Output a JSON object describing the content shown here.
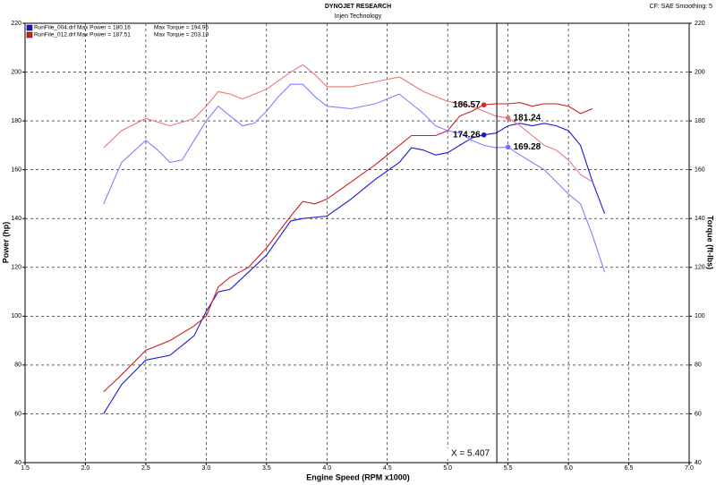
{
  "chart_data": {
    "type": "line",
    "title": "DYNOJET RESEARCH",
    "subtitle": "Injen Technology",
    "settings_text": "CF: SAE  Smoothing: 5",
    "xlabel": "Engine Speed (RPM x1000)",
    "ylabel": "Power (hp)",
    "y2label": "Torque (ft-lbs)",
    "legend": [
      {
        "text": "RunFile_004.drf Max Power = 180.16",
        "torque": "Max Torque = 194.96",
        "color": "#1a1acc"
      },
      {
        "text": "RunFile_012.drf Max Power = 187.51",
        "torque": "Max Torque = 203.19",
        "color": "#cc2222"
      }
    ],
    "xlim": [
      1.5,
      7.0
    ],
    "xticks": [
      1.5,
      {
        "value": 2,
        "label": "2.0"
      },
      2.5,
      {
        "value": 3,
        "label": "3.0"
      },
      3.5,
      {
        "value": 4,
        "label": "4.0"
      },
      4.5,
      {
        "value": 5,
        "label": "5.0"
      },
      5.5,
      {
        "value": 6,
        "label": "6.0"
      },
      6.5,
      {
        "value": 7,
        "label": "7.0"
      }
    ],
    "ylim": [
      40,
      220
    ],
    "yticks": [
      40,
      60,
      80,
      100,
      120,
      140,
      160,
      180,
      200,
      220
    ],
    "y2lim": [
      40,
      220
    ],
    "y2ticks": [
      40,
      60,
      80,
      100,
      120,
      140,
      160,
      180,
      200,
      220
    ],
    "grid": true,
    "series": [
      {
        "color": "#1a1acc",
        "axis": "y",
        "x": [
          2.15,
          2.3,
          2.5,
          2.7,
          2.9,
          3.0,
          3.1,
          3.2,
          3.35,
          3.5,
          3.7,
          3.8,
          4.0,
          4.2,
          4.4,
          4.6,
          4.7,
          4.8,
          4.9,
          5.0,
          5.1,
          5.2,
          5.3,
          5.4,
          5.5,
          5.6,
          5.7,
          5.8,
          5.9,
          6.0,
          6.1,
          6.2,
          6.3
        ],
        "values": [
          60,
          72,
          82,
          84,
          92,
          102,
          110,
          111,
          118,
          125,
          139,
          140,
          141,
          148,
          156,
          163,
          169,
          168,
          166,
          167,
          170,
          173,
          174.3,
          175,
          178,
          179,
          178,
          179,
          178,
          176,
          170,
          155,
          142
        ]
      },
      {
        "color": "#cc2222",
        "axis": "y",
        "x": [
          2.15,
          2.3,
          2.5,
          2.7,
          2.9,
          3.0,
          3.1,
          3.2,
          3.35,
          3.5,
          3.7,
          3.8,
          3.9,
          4.0,
          4.2,
          4.4,
          4.6,
          4.7,
          4.8,
          4.9,
          5.0,
          5.1,
          5.2,
          5.3,
          5.4,
          5.5,
          5.6,
          5.7,
          5.8,
          5.9,
          6.0,
          6.1,
          6.2
        ],
        "values": [
          69,
          76,
          86,
          90,
          96,
          100,
          112,
          116,
          120,
          128,
          141,
          147,
          146,
          148,
          155,
          162,
          170,
          174,
          174,
          174,
          176,
          182,
          184,
          186.6,
          187,
          187,
          187.5,
          186,
          187,
          187,
          186,
          183,
          185
        ]
      },
      {
        "color": "#8080ff",
        "axis": "y2",
        "x": [
          2.15,
          2.3,
          2.5,
          2.6,
          2.7,
          2.8,
          2.9,
          3.0,
          3.1,
          3.2,
          3.3,
          3.4,
          3.5,
          3.6,
          3.7,
          3.8,
          3.9,
          4.0,
          4.2,
          4.4,
          4.6,
          4.7,
          4.8,
          4.9,
          5.0,
          5.1,
          5.2,
          5.3,
          5.4,
          5.5,
          5.6,
          5.7,
          5.8,
          5.9,
          6.0,
          6.1,
          6.2,
          6.3
        ],
        "values": [
          146,
          163,
          172,
          168,
          163,
          164,
          172,
          180,
          186,
          182,
          178,
          179,
          184,
          190,
          195,
          195,
          190,
          186,
          185,
          187,
          191,
          187,
          183,
          178,
          176,
          175,
          172,
          170,
          169,
          169.3,
          166,
          163,
          160,
          155,
          150,
          146,
          133,
          118
        ]
      },
      {
        "color": "#e87878",
        "axis": "y2",
        "x": [
          2.15,
          2.3,
          2.5,
          2.7,
          2.9,
          3.0,
          3.1,
          3.2,
          3.3,
          3.5,
          3.7,
          3.8,
          3.9,
          4.0,
          4.2,
          4.4,
          4.6,
          4.8,
          5.0,
          5.2,
          5.3,
          5.4,
          5.5,
          5.6,
          5.7,
          5.8,
          5.9,
          6.0,
          6.1,
          6.2
        ],
        "values": [
          169,
          176,
          181,
          178,
          181,
          186,
          192,
          191,
          189,
          193,
          200,
          203,
          199,
          194,
          194,
          196,
          198,
          192,
          188,
          186,
          184,
          182,
          181.2,
          178,
          174,
          170,
          168,
          164,
          158,
          155
        ]
      }
    ],
    "points": [
      {
        "x": 5.3,
        "y": 186.57,
        "axis": "y",
        "color": "#dd2222"
      },
      {
        "x": 5.5,
        "y": 181.24,
        "axis": "y2",
        "color": "#f07070"
      },
      {
        "x": 5.3,
        "y": 174.26,
        "axis": "y",
        "color": "#1a1acc"
      },
      {
        "x": 5.5,
        "y": 169.28,
        "axis": "y2",
        "color": "#7070ff"
      }
    ],
    "cursor": {
      "x": 5.407,
      "label": "X = 5.407"
    }
  }
}
